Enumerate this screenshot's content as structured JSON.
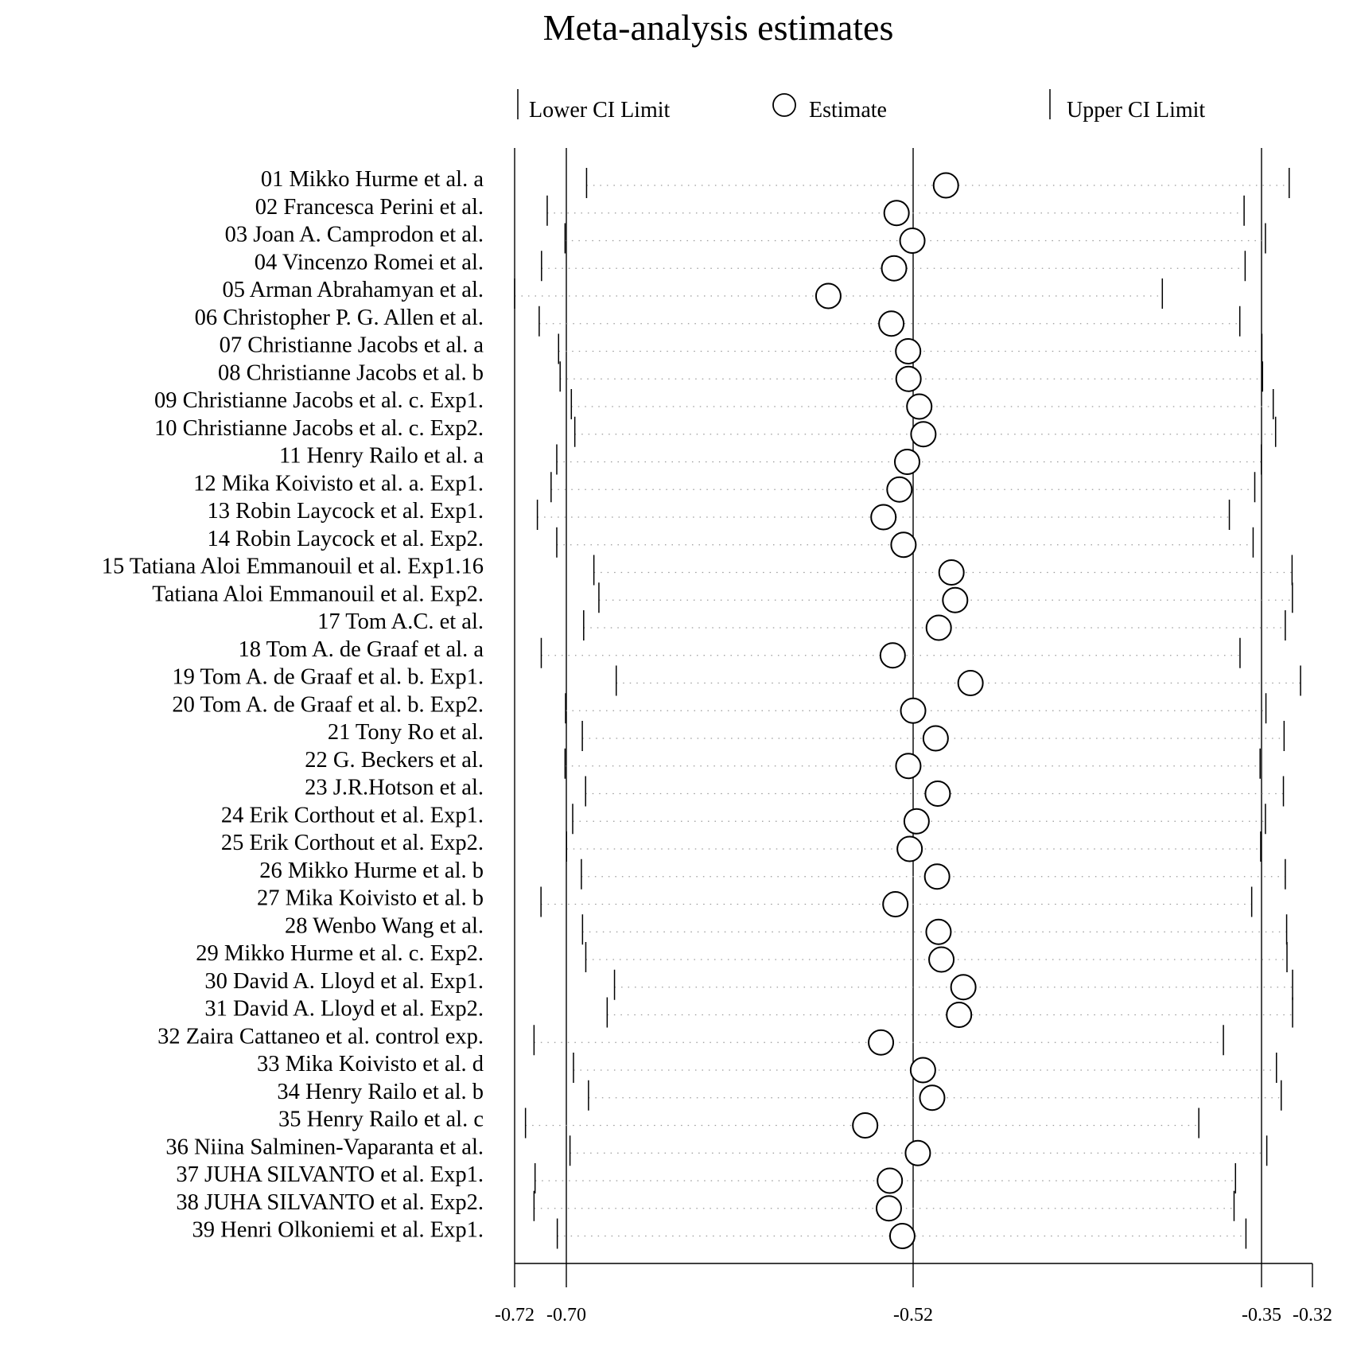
{
  "chart_data": {
    "type": "forest",
    "title": "Meta-analysis estimates",
    "legend": {
      "lower": "Lower CI Limit",
      "estimate": "Estimate",
      "upper": "Upper CI Limit",
      "placement": "top"
    },
    "xlim": [
      -0.72,
      -0.32
    ],
    "x_tick_labels": [
      "-0.72",
      "-0.70",
      "-0.52",
      "-0.35",
      "-0.32"
    ],
    "x_ticks": [
      -0.72,
      -0.7,
      -0.52,
      -0.35,
      -0.32
    ],
    "reference_lines": [
      -0.7,
      -0.52,
      -0.35
    ],
    "studies": [
      {
        "label": "01 Mikko Hurme et al. a",
        "lower": -0.6895,
        "estimate": -0.504,
        "upper": -0.3337
      },
      {
        "label": "02 Francesca Perini et al.",
        "lower": -0.7074,
        "estimate": -0.5286,
        "upper": -0.3585
      },
      {
        "label": "03 Joan A. Camprodon et al.",
        "lower": -0.7005,
        "estimate": -0.5204,
        "upper": -0.3477
      },
      {
        "label": "04 Vincenzo Romei et al.",
        "lower": -0.7096,
        "estimate": -0.5299,
        "upper": -0.358
      },
      {
        "label": "05 Arman Abrahamyan et al.",
        "lower": -0.72,
        "estimate": -0.564,
        "upper": -0.3984
      },
      {
        "label": "06 Christopher P. G. Allen et al.",
        "lower": -0.7105,
        "estimate": -0.5313,
        "upper": -0.3606
      },
      {
        "label": "07 Christianne Jacobs et al. a",
        "lower": -0.703,
        "estimate": -0.5226,
        "upper": -0.3498
      },
      {
        "label": "08 Christianne Jacobs et al. b",
        "lower": -0.7024,
        "estimate": -0.5224,
        "upper": -0.3494
      },
      {
        "label": "09 Christianne Jacobs et al. c. Exp1.",
        "lower": -0.6974,
        "estimate": -0.517,
        "upper": -0.3431
      },
      {
        "label": "10 Christianne Jacobs et al. c. Exp2.",
        "lower": -0.6956,
        "estimate": -0.515,
        "upper": -0.3417
      },
      {
        "label": "11 Henry Railo et al. a",
        "lower": -0.7037,
        "estimate": -0.5231,
        "upper": -0.3501
      },
      {
        "label": "12 Mika Koivisto et al. a. Exp1.",
        "lower": -0.7059,
        "estimate": -0.5271,
        "upper": -0.3533
      },
      {
        "label": "13 Robin Laycock et al. Exp1.",
        "lower": -0.7112,
        "estimate": -0.5354,
        "upper": -0.3657
      },
      {
        "label": "14 Robin Laycock et al. Exp2.",
        "lower": -0.7037,
        "estimate": -0.525,
        "upper": -0.3541
      },
      {
        "label": "15 Tatiana Aloi Emmanouil et al. Exp1.16",
        "lower": -0.6857,
        "estimate": -0.5013,
        "upper": -0.332
      },
      {
        "label": "Tatiana Aloi Emmanouil et al. Exp2.",
        "lower": -0.6831,
        "estimate": -0.4995,
        "upper": -0.3318
      },
      {
        "label": "17 Tom A.C. et al.",
        "lower": -0.691,
        "estimate": -0.5075,
        "upper": -0.336
      },
      {
        "label": "18 Tom A. de Graaf et al. a",
        "lower": -0.7097,
        "estimate": -0.5306,
        "upper": -0.3605
      },
      {
        "label": "19 Tom A. de Graaf et al. b. Exp1.",
        "lower": -0.6741,
        "estimate": -0.492,
        "upper": -0.327
      },
      {
        "label": "20 Tom A. de Graaf et al. b. Exp2.",
        "lower": -0.7003,
        "estimate": -0.52,
        "upper": -0.3474
      },
      {
        "label": "21 Tony Ro et al.",
        "lower": -0.6917,
        "estimate": -0.509,
        "upper": -0.3367
      },
      {
        "label": "22 G. Beckers et al.",
        "lower": -0.7005,
        "estimate": -0.5225,
        "upper": -0.3507
      },
      {
        "label": "23 J.R.Hotson et al.",
        "lower": -0.69,
        "estimate": -0.508,
        "upper": -0.3371
      },
      {
        "label": "24 Erik Corthout et al. Exp1.",
        "lower": -0.6967,
        "estimate": -0.5183,
        "upper": -0.3477
      },
      {
        "label": "25 Erik Corthout et al. Exp2.",
        "lower": -0.6999,
        "estimate": -0.5218,
        "upper": -0.3504
      },
      {
        "label": "26 Mikko Hurme et al. b",
        "lower": -0.6922,
        "estimate": -0.5083,
        "upper": -0.336
      },
      {
        "label": "27 Mika Koivisto et al. b",
        "lower": -0.7098,
        "estimate": -0.5292,
        "upper": -0.3548
      },
      {
        "label": "28 Wenbo Wang et al.",
        "lower": -0.6916,
        "estimate": -0.5076,
        "upper": -0.3352
      },
      {
        "label": "29 Mikko Hurme et al. c. Exp2.",
        "lower": -0.6899,
        "estimate": -0.5062,
        "upper": -0.335
      },
      {
        "label": "30 David A. Lloyd et al. Exp1.",
        "lower": -0.675,
        "estimate": -0.4955,
        "upper": -0.3317
      },
      {
        "label": "31 David A. Lloyd et al. Exp2.",
        "lower": -0.6788,
        "estimate": -0.4976,
        "upper": -0.3317
      },
      {
        "label": "32 Zaira Cattaneo et al. control exp.",
        "lower": -0.7125,
        "estimate": -0.5367,
        "upper": -0.3686
      },
      {
        "label": "33 Mika Koivisto et al. d",
        "lower": -0.6963,
        "estimate": -0.5152,
        "upper": -0.3412
      },
      {
        "label": "34 Henry Railo et al. b",
        "lower": -0.6885,
        "estimate": -0.5107,
        "upper": -0.3384
      },
      {
        "label": "35 Henry Railo et al. c",
        "lower": -0.7158,
        "estimate": -0.5449,
        "upper": -0.3806
      },
      {
        "label": "36 Niina Salminen-Vaparanta et al.",
        "lower": -0.6981,
        "estimate": -0.5177,
        "upper": -0.3469
      },
      {
        "label": "37 JUHA SILVANTO et al. Exp1.",
        "lower": -0.7121,
        "estimate": -0.5321,
        "upper": -0.3627
      },
      {
        "label": "38 JUHA SILVANTO et al. Exp2.",
        "lower": -0.7125,
        "estimate": -0.5326,
        "upper": -0.3634
      },
      {
        "label": "39 Henri Olkoniemi et al. Exp1.",
        "lower": -0.7035,
        "estimate": -0.5256,
        "upper": -0.3576
      }
    ]
  }
}
